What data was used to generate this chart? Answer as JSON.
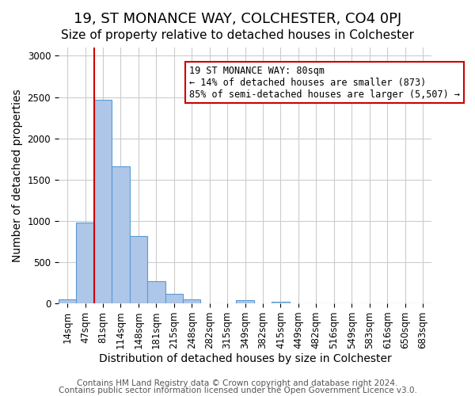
{
  "title": "19, ST MONANCE WAY, COLCHESTER, CO4 0PJ",
  "subtitle": "Size of property relative to detached houses in Colchester",
  "xlabel": "Distribution of detached houses by size in Colchester",
  "ylabel": "Number of detached properties",
  "bar_labels": [
    "14sqm",
    "47sqm",
    "81sqm",
    "114sqm",
    "148sqm",
    "181sqm",
    "215sqm",
    "248sqm",
    "282sqm",
    "315sqm",
    "349sqm",
    "382sqm",
    "415sqm",
    "449sqm",
    "482sqm",
    "516sqm",
    "549sqm",
    "583sqm",
    "616sqm",
    "650sqm",
    "683sqm"
  ],
  "bar_values": [
    50,
    980,
    2470,
    1660,
    820,
    270,
    120,
    45,
    0,
    0,
    40,
    0,
    18,
    0,
    0,
    0,
    0,
    0,
    0,
    0,
    0
  ],
  "bar_color": "#aec6e8",
  "bar_edge_color": "#5b9bd5",
  "vline_x": 2,
  "vline_color": "#cc0000",
  "annotation_box_text": "19 ST MONANCE WAY: 80sqm\n← 14% of detached houses are smaller (873)\n85% of semi-detached houses are larger (5,507) →",
  "annotation_box_color": "#cc0000",
  "ylim": [
    0,
    3100
  ],
  "yticks": [
    0,
    500,
    1000,
    1500,
    2000,
    2500,
    3000
  ],
  "footer_line1": "Contains HM Land Registry data © Crown copyright and database right 2024.",
  "footer_line2": "Contains public sector information licensed under the Open Government Licence v3.0.",
  "bg_color": "#ffffff",
  "grid_color": "#cccccc",
  "title_fontsize": 13,
  "subtitle_fontsize": 11,
  "axis_label_fontsize": 10,
  "tick_fontsize": 8.5,
  "footer_fontsize": 7.5
}
